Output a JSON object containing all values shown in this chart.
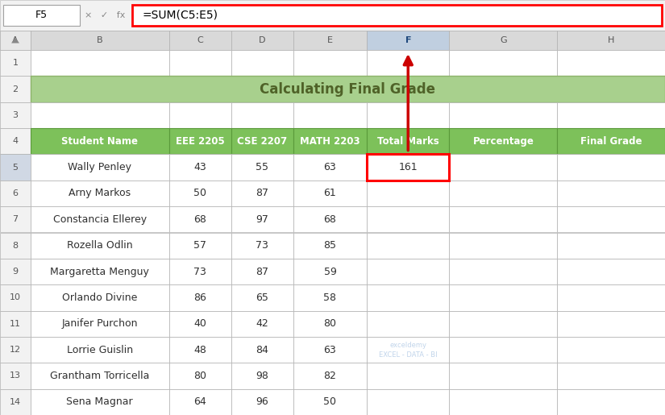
{
  "title": "Calculating Final Grade",
  "formula_bar_cell": "F5",
  "formula_bar_formula": "=SUM(C5:E5)",
  "headers": [
    "Student Name",
    "EEE 2205",
    "CSE 2207",
    "MATH 2203",
    "Total Marks",
    "Percentage",
    "Final Grade"
  ],
  "rows": [
    [
      "Wally Penley",
      "43",
      "55",
      "63",
      "161",
      "",
      ""
    ],
    [
      "Arny Markos",
      "50",
      "87",
      "61",
      "",
      "",
      ""
    ],
    [
      "Constancia Ellerey",
      "68",
      "97",
      "68",
      "",
      "",
      ""
    ],
    [
      "Rozella Odlin",
      "57",
      "73",
      "85",
      "",
      "",
      ""
    ],
    [
      "Margaretta Menguy",
      "73",
      "87",
      "59",
      "",
      "",
      ""
    ],
    [
      "Orlando Divine",
      "86",
      "65",
      "58",
      "",
      "",
      ""
    ],
    [
      "Janifer Purchon",
      "40",
      "42",
      "80",
      "",
      "",
      ""
    ],
    [
      "Lorrie Guislin",
      "48",
      "84",
      "63",
      "",
      "",
      ""
    ],
    [
      "Grantham Torricella",
      "80",
      "98",
      "82",
      "",
      "",
      ""
    ],
    [
      "Sena Magnar",
      "64",
      "96",
      "50",
      "",
      "",
      ""
    ]
  ],
  "header_bg": "#7DC15A",
  "header_text": "#ffffff",
  "title_bg": "#A8D08D",
  "title_text": "#4f6228",
  "selected_cell_border": "#ff0000",
  "formula_bar_border": "#ff0000",
  "arrow_color": "#cc0000",
  "col_header_bg": "#d9d9d9",
  "col_header_selected_bg": "#c0cfe0",
  "row_header_bg": "#f2f2f2",
  "row_header_selected_bg": "#d0d8e4",
  "grid_color": "#b0b0b0",
  "watermark_text": "exceldemy\nEXCEL - DATA - BI"
}
